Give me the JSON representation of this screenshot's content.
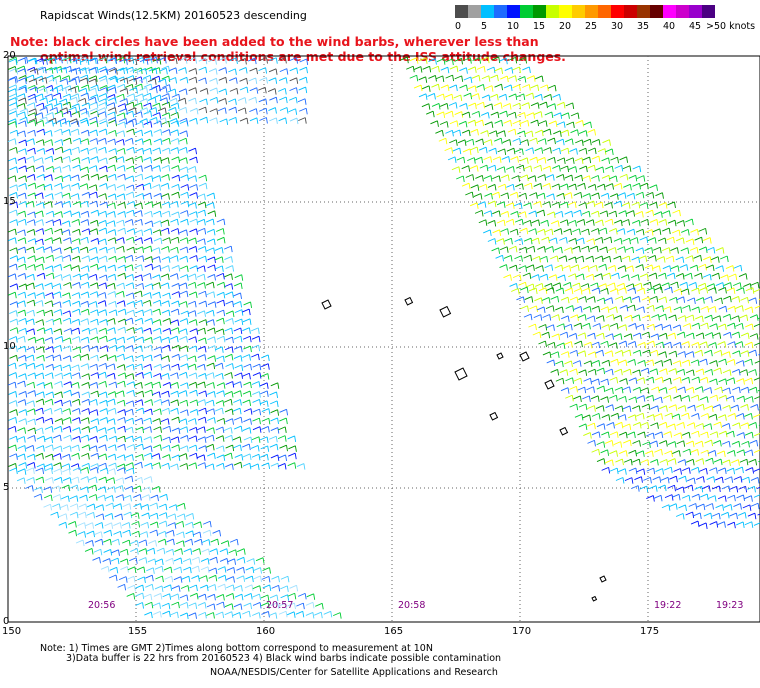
{
  "title": "Rapidscat Winds(12.5KM) 20160523 descending",
  "note": {
    "line1": "Note: black circles have been added to the wind barbs, wherever less than",
    "line2": "optimal wind retrieval conditions are met due to the ISS attitude changes."
  },
  "colorbar": {
    "unit": ">50 knots",
    "segments": [
      {
        "label": "0",
        "color": "#4d4d4d"
      },
      {
        "label": "",
        "color": "#a0a0a0"
      },
      {
        "label": "5",
        "color": "#00bfff"
      },
      {
        "label": "",
        "color": "#1e6bff"
      },
      {
        "label": "10",
        "color": "#0014ff"
      },
      {
        "label": "",
        "color": "#00cc33"
      },
      {
        "label": "15",
        "color": "#009900"
      },
      {
        "label": "",
        "color": "#c8ff00"
      },
      {
        "label": "20",
        "color": "#ffff00"
      },
      {
        "label": "",
        "color": "#ffcc00"
      },
      {
        "label": "25",
        "color": "#ff9900"
      },
      {
        "label": "",
        "color": "#ff6600"
      },
      {
        "label": "30",
        "color": "#ff0000"
      },
      {
        "label": "",
        "color": "#cc0000"
      },
      {
        "label": "35",
        "color": "#993300"
      },
      {
        "label": "",
        "color": "#660000"
      },
      {
        "label": "40",
        "color": "#ff00ff"
      },
      {
        "label": "",
        "color": "#cc00cc"
      },
      {
        "label": "45",
        "color": "#9900cc"
      },
      {
        "label": "",
        "color": "#4b0082"
      }
    ]
  },
  "axes": {
    "lon_ticks": [
      "150",
      "155",
      "160",
      "165",
      "170",
      "175"
    ],
    "lat_ticks": [
      "20",
      "15",
      "10",
      "5",
      "0"
    ]
  },
  "pass_times": [
    "20:56",
    "20:57",
    "20:58",
    "19:22",
    "19:23"
  ],
  "footer": {
    "line1": "Note: 1) Times are GMT 2)Times along bottom correspond to measurement at 10N",
    "line2": "3)Data buffer is 22 hrs from 20160523 4) Black wind barbs indicate possible contamination",
    "line3": "NOAA/NESDIS/Center for Satellite Applications and Research"
  }
}
